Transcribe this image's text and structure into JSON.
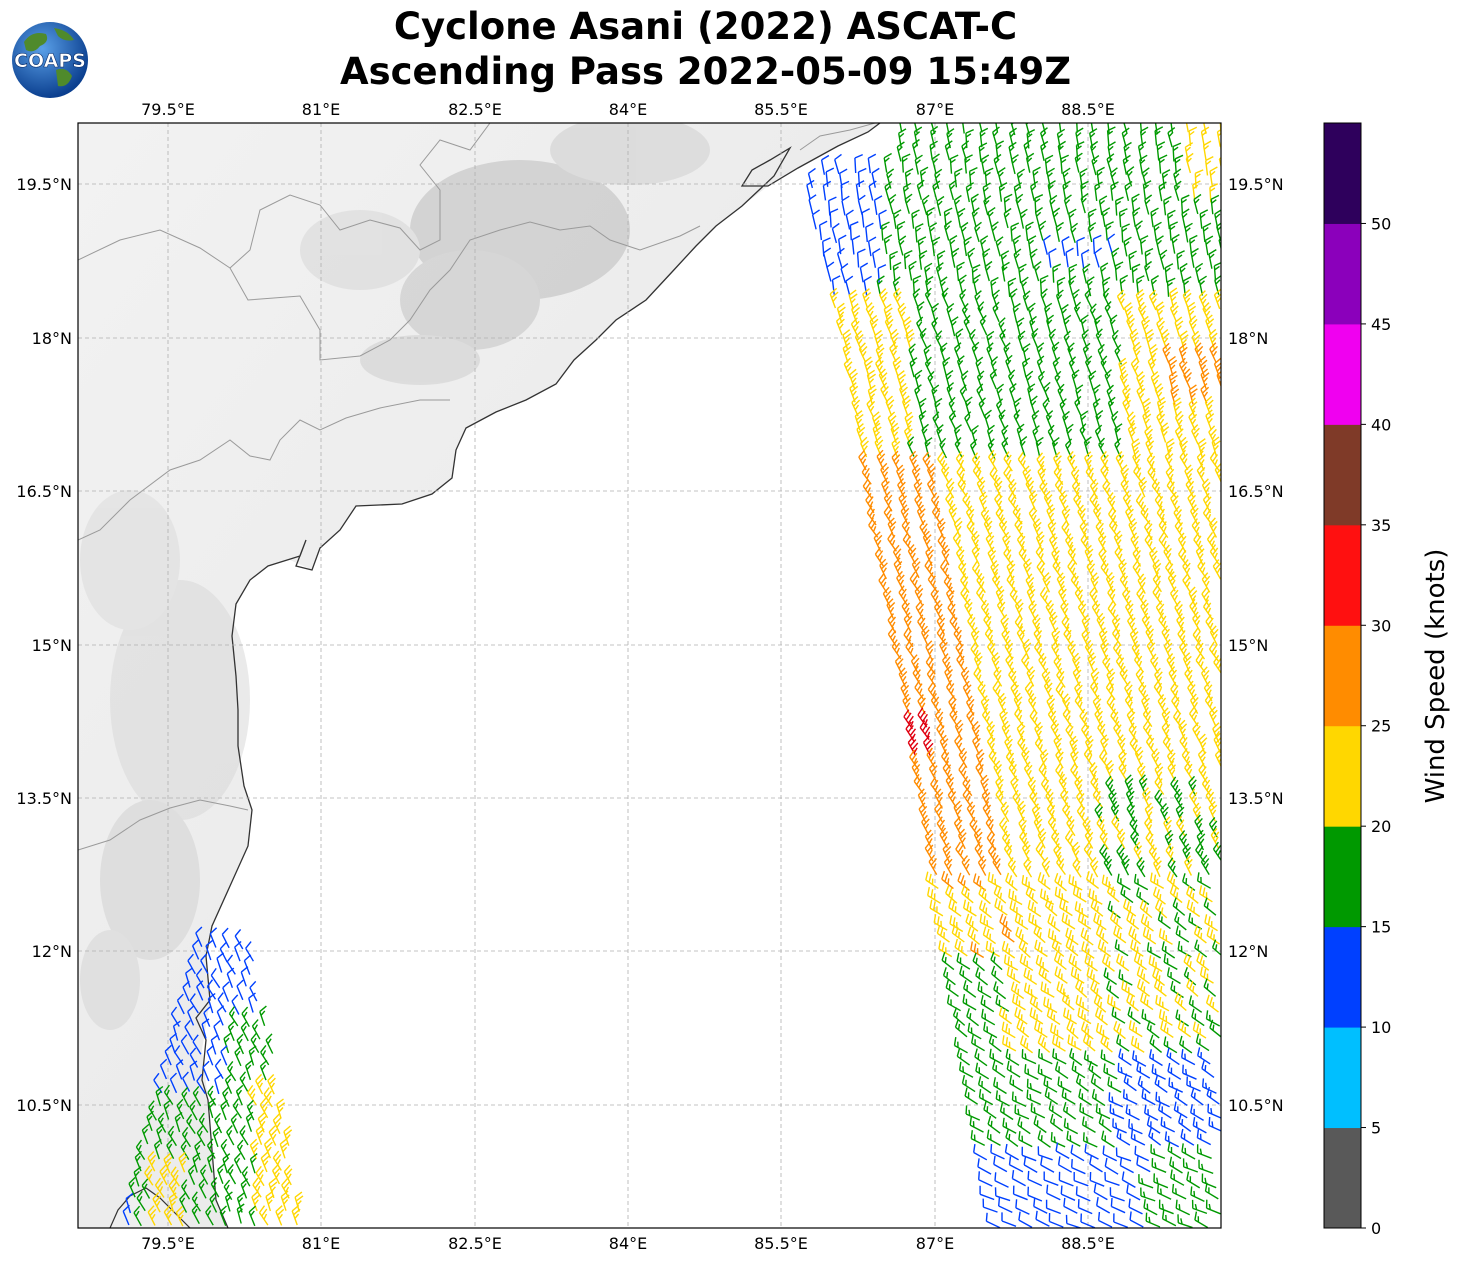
{
  "title": {
    "line1": "Cyclone Asani (2022) ASCAT-C",
    "line2": "Ascending Pass 2022-05-09 15:49Z"
  },
  "logo": {
    "text": "COAPS"
  },
  "axes": {
    "lon_ticks": [
      "79.5°E",
      "81°E",
      "82.5°E",
      "84°E",
      "85.5°E",
      "87°E",
      "88.5°E"
    ],
    "lat_ticks": [
      "19.5°N",
      "18°N",
      "16.5°N",
      "15°N",
      "13.5°N",
      "12°N",
      "10.5°N"
    ]
  },
  "colorbar": {
    "label": "Wind Speed (knots)",
    "ticks": [
      "0",
      "5",
      "10",
      "15",
      "20",
      "25",
      "30",
      "35",
      "40",
      "45",
      "50"
    ],
    "colors": [
      "#595959",
      "#00bfff",
      "#0040ff",
      "#009900",
      "#ffd700",
      "#ff8c00",
      "#ff1010",
      "#7f3a28",
      "#f000f0",
      "#8b00bb",
      "#2e005c"
    ]
  }
}
